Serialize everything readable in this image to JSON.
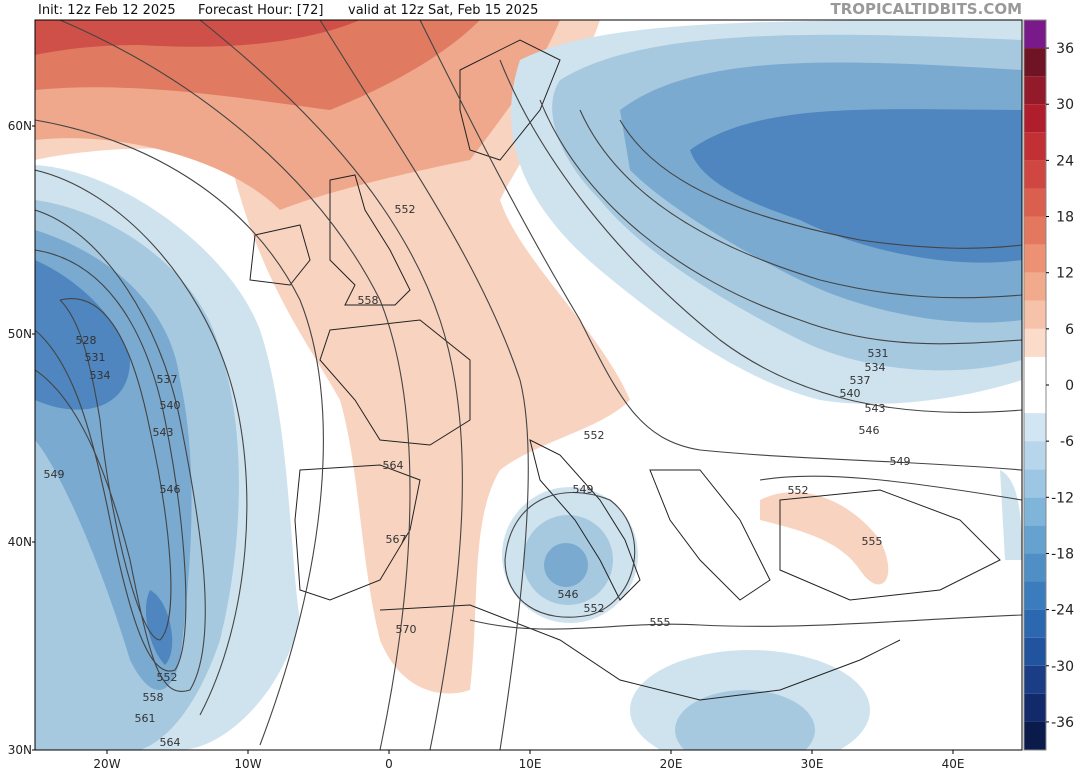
{
  "header": {
    "init": "Init: 12z Feb 12 2025",
    "forecast_hour": "Forecast Hour: [72]",
    "valid": "valid at 12z Sat, Feb 15 2025",
    "brand": "TROPICALTIDBITS.COM"
  },
  "map": {
    "lat_labels": [
      "60N",
      "50N",
      "40N",
      "30N"
    ],
    "lon_labels": [
      "20W",
      "10W",
      "0",
      "10E",
      "20E",
      "30E",
      "40E"
    ],
    "contour_labels": [
      552,
      558,
      528,
      531,
      534,
      537,
      540,
      543,
      549,
      546,
      564,
      567,
      570,
      552,
      549,
      546,
      552,
      555,
      552,
      558,
      561,
      564,
      531,
      534,
      537,
      540,
      543,
      546,
      549,
      552,
      555
    ]
  },
  "colorbar": {
    "lim": [
      -39,
      39
    ],
    "ticks": [
      36,
      30,
      24,
      18,
      12,
      6,
      0,
      -6,
      -12,
      -18,
      -24,
      -30,
      -36
    ],
    "colors": [
      "#0a1a4a",
      "#12296a",
      "#1a3d85",
      "#22539e",
      "#2b68b0",
      "#3a7cbc",
      "#4f8fc6",
      "#66a2d0",
      "#80b5da",
      "#9cc6e3",
      "#b7d6eb",
      "#d2e5f2",
      "#ffffff",
      "#ffffff",
      "#fbdccb",
      "#f6c3aa",
      "#f2aa8c",
      "#ec9173",
      "#e4785f",
      "#da5f4e",
      "#cf4740",
      "#c23035",
      "#b01e2e",
      "#921a2a",
      "#6e1424",
      "#7a1a8a"
    ]
  }
}
